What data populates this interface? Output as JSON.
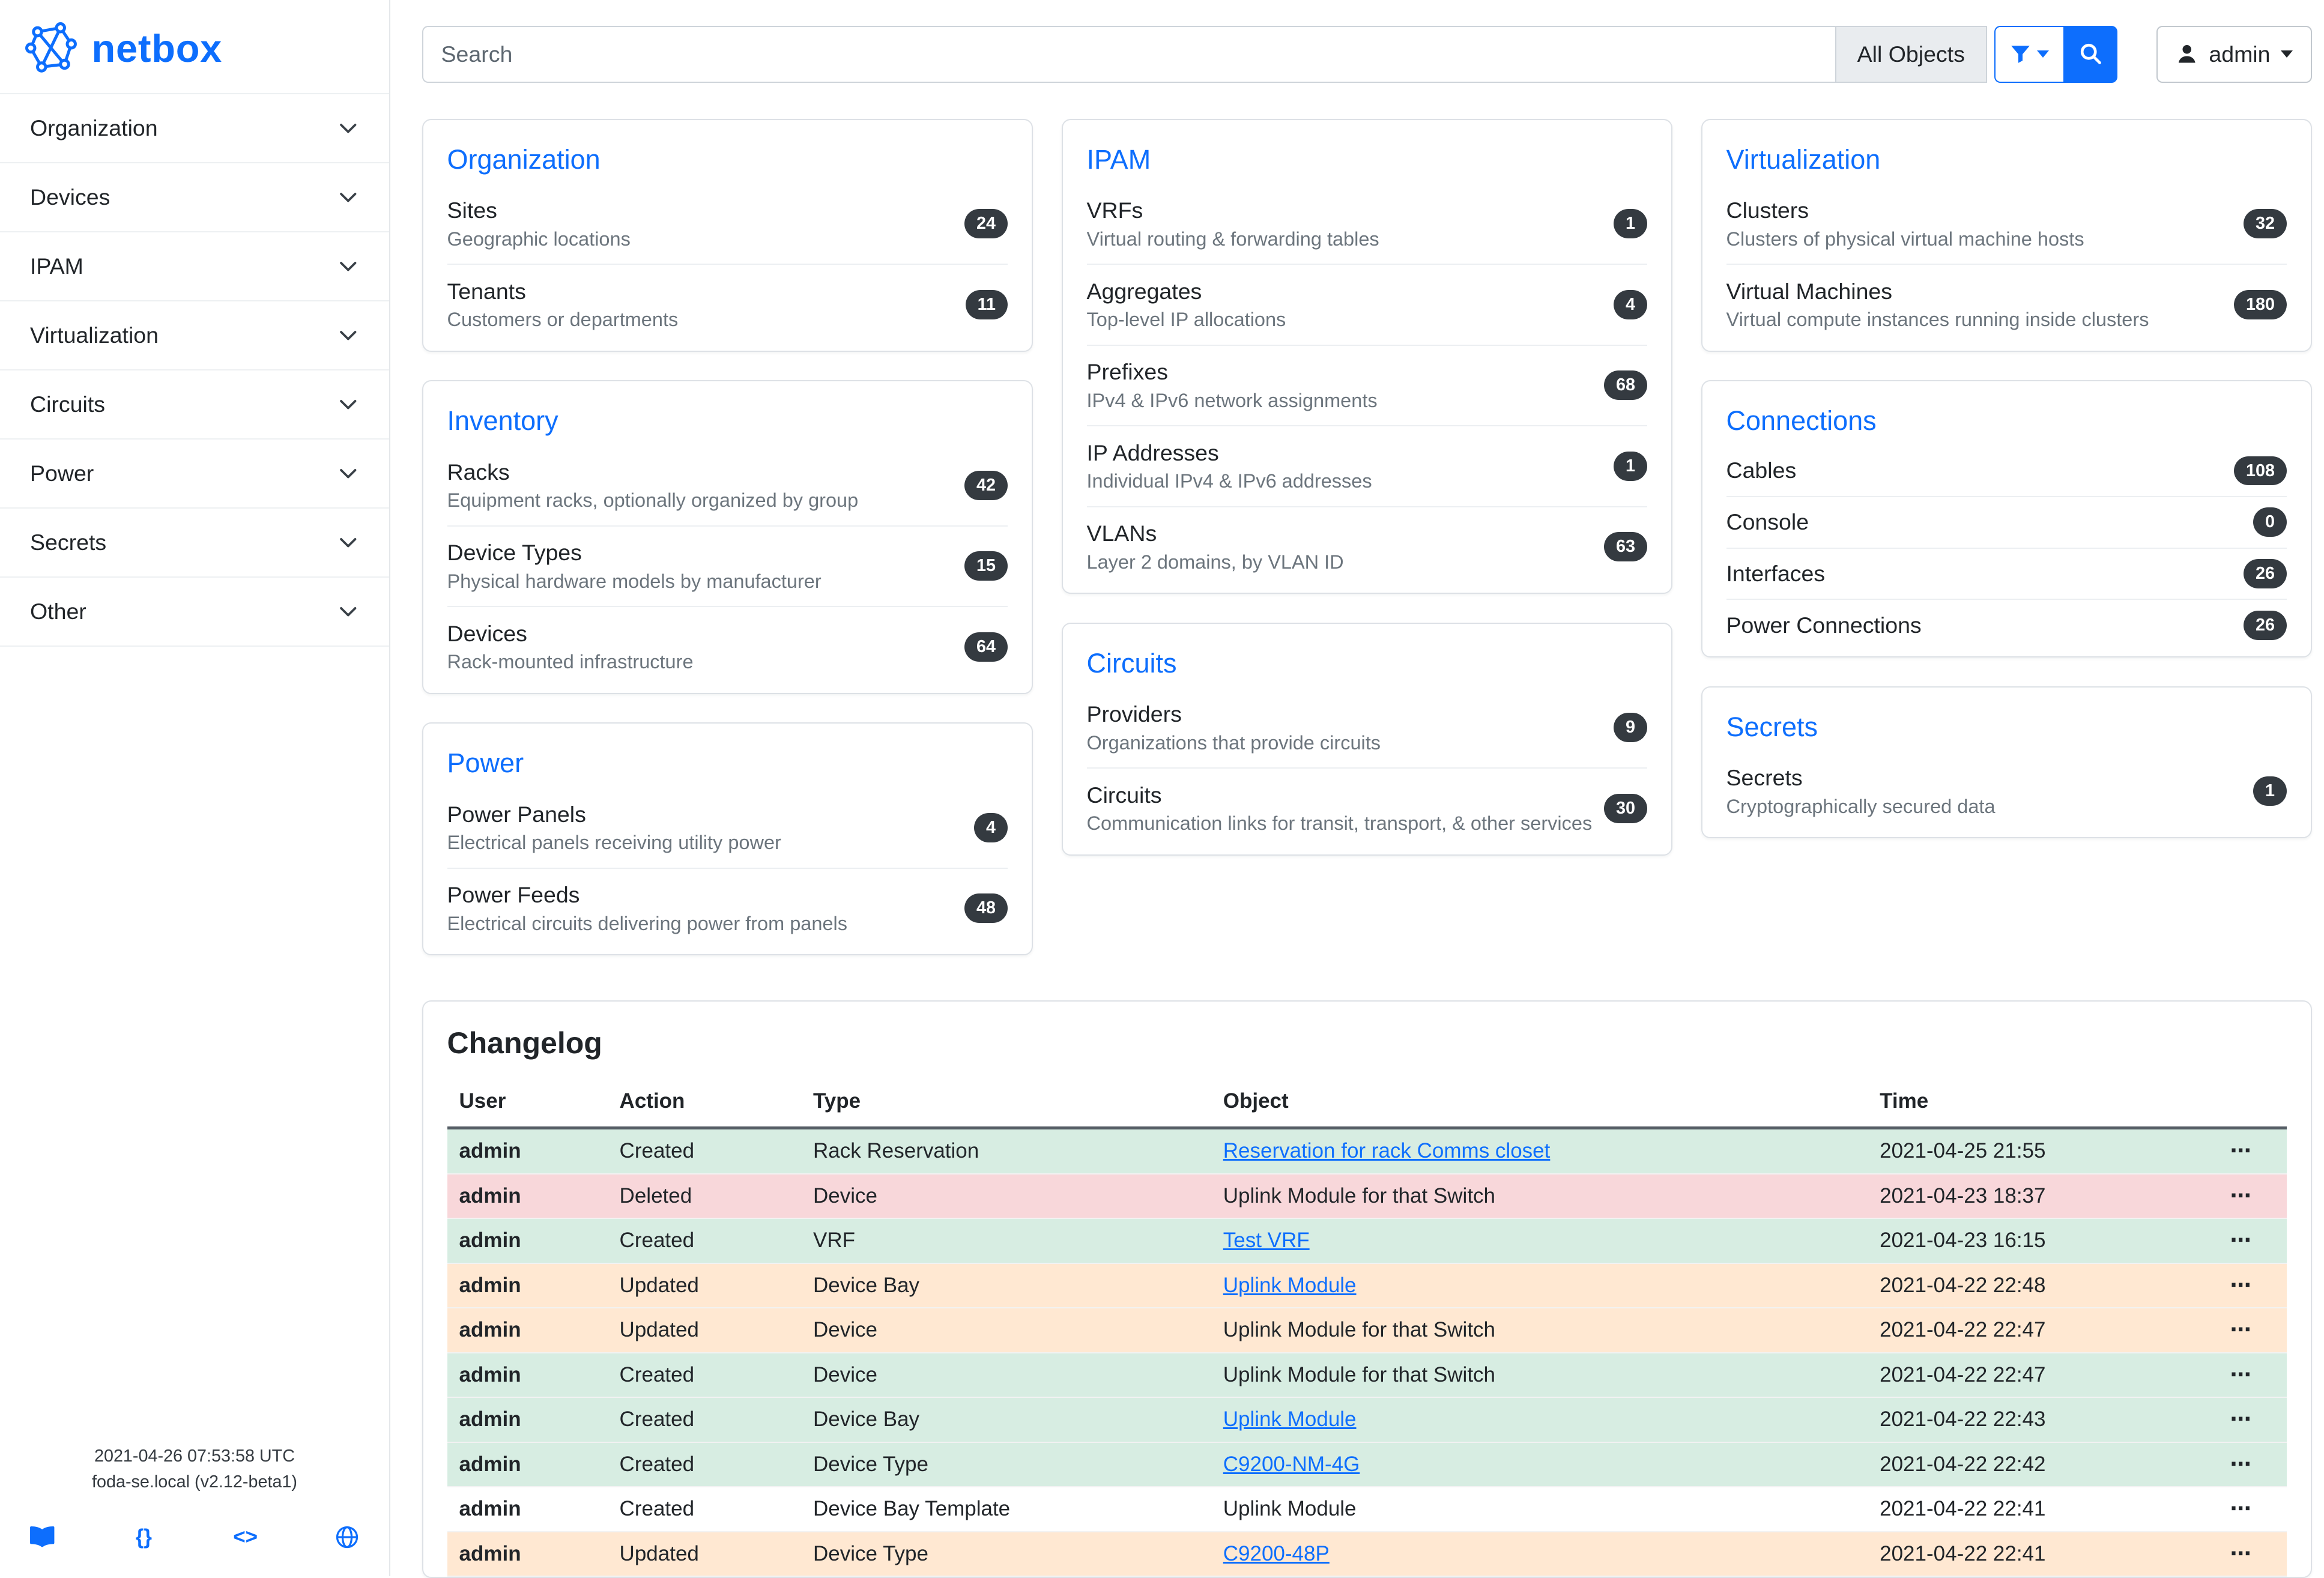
{
  "brand": {
    "name": "netbox"
  },
  "colors": {
    "accent": "#0d6efd",
    "badge_bg": "#343a40",
    "row_created": "#d7ede2",
    "row_deleted": "#f8d7da",
    "row_updated": "#ffe8d2"
  },
  "topbar": {
    "search_placeholder": "Search",
    "scope_button_label": "All Objects",
    "user_label": "admin"
  },
  "sidebar": {
    "items": [
      "Organization",
      "Devices",
      "IPAM",
      "Virtualization",
      "Circuits",
      "Power",
      "Secrets",
      "Other"
    ],
    "footer_time": "2021-04-26 07:53:58 UTC",
    "footer_host": "foda-se.local (v2.12-beta1)"
  },
  "icons": {
    "api_braces": "{}",
    "code_markup": "<>"
  },
  "dashboard": {
    "columns": [
      [
        {
          "title": "Organization",
          "items": [
            {
              "name": "Sites",
              "desc": "Geographic locations",
              "count": "24"
            },
            {
              "name": "Tenants",
              "desc": "Customers or departments",
              "count": "11"
            }
          ]
        },
        {
          "title": "Inventory",
          "items": [
            {
              "name": "Racks",
              "desc": "Equipment racks, optionally organized by group",
              "count": "42"
            },
            {
              "name": "Device Types",
              "desc": "Physical hardware models by manufacturer",
              "count": "15"
            },
            {
              "name": "Devices",
              "desc": "Rack-mounted infrastructure",
              "count": "64"
            }
          ]
        },
        {
          "title": "Power",
          "items": [
            {
              "name": "Power Panels",
              "desc": "Electrical panels receiving utility power",
              "count": "4"
            },
            {
              "name": "Power Feeds",
              "desc": "Electrical circuits delivering power from panels",
              "count": "48"
            }
          ]
        }
      ],
      [
        {
          "title": "IPAM",
          "items": [
            {
              "name": "VRFs",
              "desc": "Virtual routing & forwarding tables",
              "count": "1"
            },
            {
              "name": "Aggregates",
              "desc": "Top-level IP allocations",
              "count": "4"
            },
            {
              "name": "Prefixes",
              "desc": "IPv4 & IPv6 network assignments",
              "count": "68"
            },
            {
              "name": "IP Addresses",
              "desc": "Individual IPv4 & IPv6 addresses",
              "count": "1"
            },
            {
              "name": "VLANs",
              "desc": "Layer 2 domains, by VLAN ID",
              "count": "63"
            }
          ]
        },
        {
          "title": "Circuits",
          "items": [
            {
              "name": "Providers",
              "desc": "Organizations that provide circuits",
              "count": "9"
            },
            {
              "name": "Circuits",
              "desc": "Communication links for transit, transport, & other services",
              "count": "30"
            }
          ]
        }
      ],
      [
        {
          "title": "Virtualization",
          "items": [
            {
              "name": "Clusters",
              "desc": "Clusters of physical virtual machine hosts",
              "count": "32"
            },
            {
              "name": "Virtual Machines",
              "desc": "Virtual compute instances running inside clusters",
              "count": "180"
            }
          ]
        },
        {
          "title": "Connections",
          "items": [
            {
              "name": "Cables",
              "count": "108"
            },
            {
              "name": "Console",
              "count": "0"
            },
            {
              "name": "Interfaces",
              "count": "26"
            },
            {
              "name": "Power Connections",
              "count": "26"
            }
          ]
        },
        {
          "title": "Secrets",
          "items": [
            {
              "name": "Secrets",
              "desc": "Cryptographically secured data",
              "count": "1"
            }
          ]
        }
      ]
    ]
  },
  "changelog": {
    "title": "Changelog",
    "columns": [
      "User",
      "Action",
      "Type",
      "Object",
      "Time"
    ],
    "ellipsis": "⋯",
    "rows": [
      {
        "user": "admin",
        "action": "Created",
        "type": "Rack Reservation",
        "object": "Reservation for rack Comms closet",
        "object_link": true,
        "time": "2021-04-25 21:55",
        "status": "created"
      },
      {
        "user": "admin",
        "action": "Deleted",
        "type": "Device",
        "object": "Uplink Module for that Switch",
        "object_link": false,
        "time": "2021-04-23 18:37",
        "status": "deleted"
      },
      {
        "user": "admin",
        "action": "Created",
        "type": "VRF",
        "object": "Test VRF",
        "object_link": true,
        "time": "2021-04-23 16:15",
        "status": "created"
      },
      {
        "user": "admin",
        "action": "Updated",
        "type": "Device Bay",
        "object": "Uplink Module",
        "object_link": true,
        "time": "2021-04-22 22:48",
        "status": "updated"
      },
      {
        "user": "admin",
        "action": "Updated",
        "type": "Device",
        "object": "Uplink Module for that Switch",
        "object_link": false,
        "time": "2021-04-22 22:47",
        "status": "updated"
      },
      {
        "user": "admin",
        "action": "Created",
        "type": "Device",
        "object": "Uplink Module for that Switch",
        "object_link": false,
        "time": "2021-04-22 22:47",
        "status": "created"
      },
      {
        "user": "admin",
        "action": "Created",
        "type": "Device Bay",
        "object": "Uplink Module",
        "object_link": true,
        "time": "2021-04-22 22:43",
        "status": "created"
      },
      {
        "user": "admin",
        "action": "Created",
        "type": "Device Type",
        "object": "C9200-NM-4G",
        "object_link": true,
        "time": "2021-04-22 22:42",
        "status": "created"
      },
      {
        "user": "admin",
        "action": "Created",
        "type": "Device Bay Template",
        "object": "Uplink Module",
        "object_link": false,
        "time": "2021-04-22 22:41",
        "status": "none"
      },
      {
        "user": "admin",
        "action": "Updated",
        "type": "Device Type",
        "object": "C9200-48P",
        "object_link": true,
        "time": "2021-04-22 22:41",
        "status": "updated"
      }
    ]
  }
}
